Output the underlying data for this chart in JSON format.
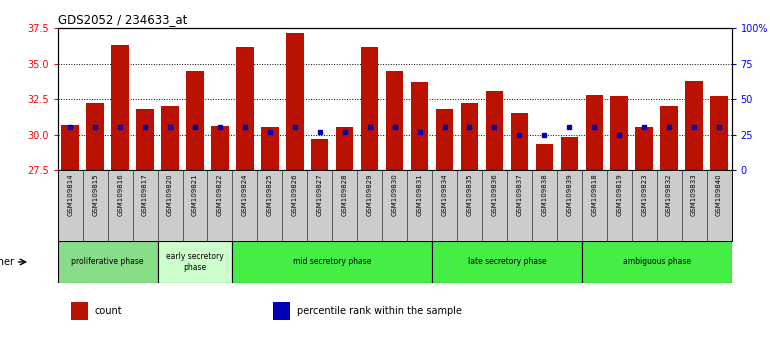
{
  "title": "GDS2052 / 234633_at",
  "samples": [
    "GSM109814",
    "GSM109815",
    "GSM109816",
    "GSM109817",
    "GSM109820",
    "GSM109821",
    "GSM109822",
    "GSM109824",
    "GSM109825",
    "GSM109826",
    "GSM109827",
    "GSM109828",
    "GSM109829",
    "GSM109830",
    "GSM109831",
    "GSM109834",
    "GSM109835",
    "GSM109836",
    "GSM109837",
    "GSM109838",
    "GSM109839",
    "GSM109818",
    "GSM109819",
    "GSM109823",
    "GSM109832",
    "GSM109833",
    "GSM109840"
  ],
  "counts": [
    30.7,
    32.2,
    36.3,
    31.8,
    32.0,
    34.5,
    30.6,
    36.2,
    30.5,
    37.2,
    29.7,
    30.5,
    36.2,
    34.5,
    33.7,
    31.8,
    32.2,
    33.1,
    31.5,
    29.3,
    29.8,
    32.8,
    32.7,
    30.5,
    32.0,
    33.8,
    32.7
  ],
  "percentile_ranks_pct": [
    30,
    30,
    30,
    30,
    30,
    30,
    30,
    30,
    27,
    30,
    27,
    27,
    30,
    30,
    27,
    30,
    30,
    30,
    25,
    25,
    30,
    30,
    25,
    30,
    30,
    30,
    30
  ],
  "ylim_left": [
    27.5,
    37.5
  ],
  "ylim_right": [
    0,
    100
  ],
  "yticks_left": [
    27.5,
    30.0,
    32.5,
    35.0,
    37.5
  ],
  "yticks_right": [
    0,
    25,
    50,
    75,
    100
  ],
  "ytick_labels_right": [
    "0",
    "25",
    "50",
    "75",
    "100%"
  ],
  "bar_color": "#bb1100",
  "marker_color": "#0000bb",
  "phases": [
    {
      "label": "proliferative phase",
      "start": 0,
      "end": 4,
      "color": "#88dd88"
    },
    {
      "label": "early secretory\nphase",
      "start": 4,
      "end": 7,
      "color": "#ccffcc"
    },
    {
      "label": "mid secretory phase",
      "start": 7,
      "end": 15,
      "color": "#44ee44"
    },
    {
      "label": "late secretory phase",
      "start": 15,
      "end": 21,
      "color": "#44ee44"
    },
    {
      "label": "ambiguous phase",
      "start": 21,
      "end": 27,
      "color": "#44ee44"
    }
  ],
  "legend_items": [
    {
      "color": "#bb1100",
      "label": "count"
    },
    {
      "color": "#0000bb",
      "label": "percentile rank within the sample"
    }
  ],
  "other_label": "other",
  "bar_width": 0.7,
  "xtick_bg_color": "#cccccc"
}
